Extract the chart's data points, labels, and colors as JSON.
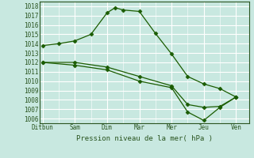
{
  "xlabel": "Pression niveau de la mer( hPa )",
  "background_color": "#c8e8e0",
  "grid_color": "#ffffff",
  "line_color": "#1a5c00",
  "ylim": [
    1005.5,
    1018.5
  ],
  "yticks": [
    1006,
    1007,
    1008,
    1009,
    1010,
    1011,
    1012,
    1013,
    1014,
    1015,
    1016,
    1017,
    1018
  ],
  "x_labels": [
    "Ditbun",
    "Sam",
    "Dim",
    "Mar",
    "Mer",
    "Jeu",
    "Ven"
  ],
  "x_positions": [
    0,
    1,
    2,
    3,
    4,
    5,
    6
  ],
  "line1_x": [
    0,
    0.5,
    1,
    1.5,
    2,
    2.25,
    2.5,
    3,
    3.5,
    4,
    4.5,
    5,
    5.5,
    6
  ],
  "line1_y": [
    1013.8,
    1014.0,
    1014.3,
    1015.0,
    1017.3,
    1017.85,
    1017.6,
    1017.45,
    1015.1,
    1012.9,
    1010.5,
    1009.7,
    1009.2,
    1008.3
  ],
  "line2_x": [
    0,
    1,
    2,
    3,
    4,
    4.5,
    5,
    5.5,
    6
  ],
  "line2_y": [
    1012.0,
    1012.0,
    1011.5,
    1010.5,
    1009.5,
    1007.5,
    1007.2,
    1007.3,
    1008.3
  ],
  "line3_x": [
    0,
    1,
    2,
    3,
    4,
    4.5,
    5,
    5.5,
    6
  ],
  "line3_y": [
    1012.0,
    1011.7,
    1011.2,
    1010.0,
    1009.3,
    1006.7,
    1005.8,
    1007.2,
    1008.3
  ]
}
